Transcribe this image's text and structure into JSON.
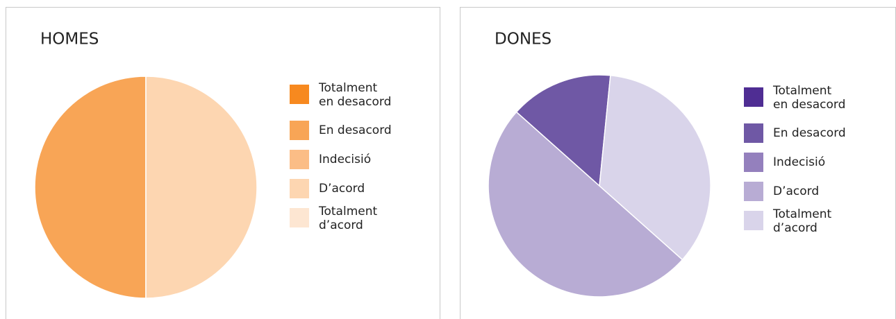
{
  "chart_data": [
    {
      "type": "pie",
      "title": "HOMES",
      "categories": [
        "Totalment en desacord",
        "En desacord",
        "Indecisió",
        "D’acord",
        "Totalment d’acord"
      ],
      "values": [
        0,
        50,
        0,
        50,
        0
      ],
      "colors": [
        "#f7891f",
        "#f8a556",
        "#fbbd86",
        "#fdd6b1",
        "#fde6d2"
      ]
    },
    {
      "type": "pie",
      "title": "DONES",
      "categories": [
        "Totalment en desacord",
        "En desacord",
        "Indecisió",
        "D’acord",
        "Totalment d’acord"
      ],
      "values": [
        0,
        15,
        0,
        50,
        35
      ],
      "colors": [
        "#4f2d93",
        "#6f58a5",
        "#9480bd",
        "#b8acd4",
        "#d9d4ea"
      ]
    }
  ]
}
